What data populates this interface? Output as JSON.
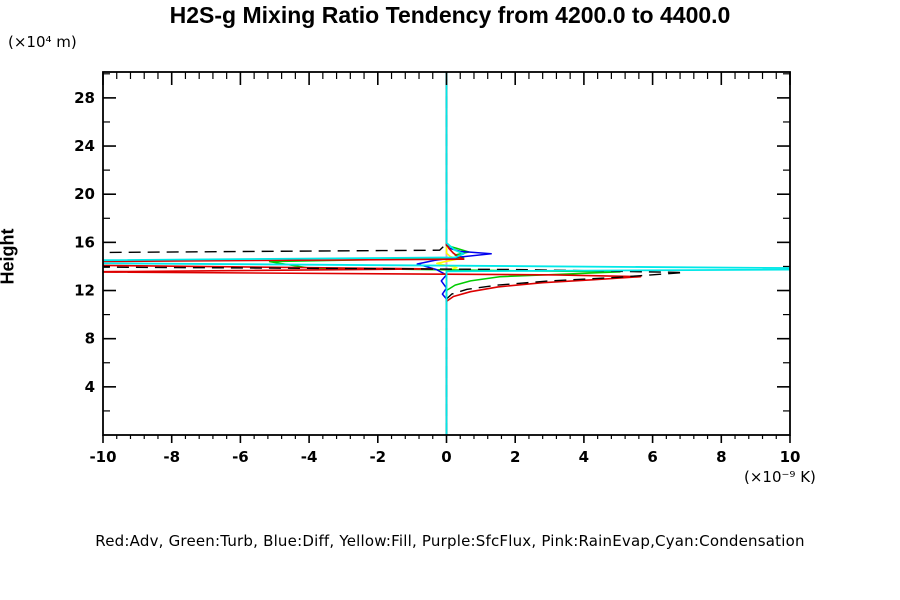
{
  "title": "H2S-g Mixing Ratio Tendency from 4200.0 to 4400.0",
  "legend": "Red:Adv, Green:Turb, Blue:Diff, Yellow:Fill, Purple:SfcFlux, Pink:RainEvap,Cyan:Condensation",
  "y_axis": {
    "unit_label": "(×10⁴ m)",
    "axis_label": "Height",
    "range": [
      0,
      30.15
    ],
    "major_ticks": [
      4,
      8,
      12,
      16,
      20,
      24,
      28
    ],
    "tick_labels": [
      "4",
      "8",
      "12",
      "16",
      "20",
      "24",
      "28"
    ],
    "minor_step": 2
  },
  "x_axis": {
    "unit_label": "(×10⁻⁹ K)",
    "range": [
      -10,
      10
    ],
    "major_ticks": [
      -10,
      -8,
      -6,
      -4,
      -2,
      0,
      2,
      4,
      6,
      8,
      10
    ],
    "tick_labels": [
      "-10",
      "-8",
      "-6",
      "-4",
      "-2",
      "0",
      "2",
      "4",
      "6",
      "8",
      "10"
    ],
    "minor_step": 0.4
  },
  "chart_data": {
    "type": "line",
    "title": "H2S-g Mixing Ratio Tendency from 4200.0 to 4400.0",
    "xlabel": "(×10⁻⁹ K)",
    "ylabel": "Height (×10⁴ m)",
    "x_range": [
      -10,
      10
    ],
    "y_range": [
      0,
      30.15
    ],
    "grid": false,
    "note": "Profiles plotted as x=tendency value vs y=height; values beyond ±10 are clipped at the frame. Points are [tendency, height].",
    "series": [
      {
        "name": "SfcFlux",
        "color": "#9944bb",
        "dash": null,
        "width": 1.4,
        "points": [
          [
            0,
            0
          ],
          [
            0,
            30.15
          ]
        ]
      },
      {
        "name": "RainEvap",
        "color": "#dd99dd",
        "dash": null,
        "width": 1.6,
        "points": [
          [
            0,
            0
          ],
          [
            0,
            30.15
          ]
        ]
      },
      {
        "name": "Fill",
        "color": "#ffff00",
        "dash": null,
        "width": 1.6,
        "points": [
          [
            0,
            0
          ],
          [
            0,
            13.6
          ],
          [
            0.3,
            13.9
          ],
          [
            -0.28,
            14.25
          ],
          [
            0.3,
            14.6
          ],
          [
            0.1,
            14.85
          ],
          [
            0,
            15.1
          ],
          [
            0,
            30.15
          ]
        ]
      },
      {
        "name": "Turb",
        "color": "#00cc00",
        "dash": null,
        "width": 1.5,
        "points": [
          [
            0,
            0
          ],
          [
            0,
            12.0
          ],
          [
            0.25,
            12.45
          ],
          [
            0.7,
            12.8
          ],
          [
            1.55,
            13.15
          ],
          [
            5.05,
            13.55
          ],
          [
            -3.97,
            13.85
          ],
          [
            -5.15,
            14.4
          ],
          [
            0.5,
            14.7
          ],
          [
            0.25,
            14.95
          ],
          [
            0.65,
            15.2
          ],
          [
            0.3,
            15.5
          ],
          [
            0,
            15.75
          ],
          [
            0,
            30.15
          ]
        ]
      },
      {
        "name": "Diff",
        "color": "#0000ee",
        "dash": null,
        "width": 1.5,
        "points": [
          [
            0,
            0
          ],
          [
            0,
            11.3
          ],
          [
            -0.12,
            11.7
          ],
          [
            0,
            12.2
          ],
          [
            -0.15,
            12.8
          ],
          [
            0,
            13.3
          ],
          [
            -0.3,
            13.75
          ],
          [
            -0.85,
            14.2
          ],
          [
            -0.35,
            14.5
          ],
          [
            0.3,
            14.75
          ],
          [
            1.3,
            15.05
          ],
          [
            0.4,
            15.25
          ],
          [
            0.1,
            15.5
          ],
          [
            0,
            15.75
          ],
          [
            0,
            30.15
          ]
        ]
      },
      {
        "name": "Adv",
        "color": "#dd0000",
        "dash": null,
        "width": 1.6,
        "points": [
          [
            0,
            0
          ],
          [
            0,
            11.1
          ],
          [
            0.2,
            11.5
          ],
          [
            0.7,
            11.9
          ],
          [
            1.5,
            12.3
          ],
          [
            2.8,
            12.65
          ],
          [
            4.3,
            12.9
          ],
          [
            5.65,
            13.15
          ],
          [
            3.2,
            13.3
          ],
          [
            -10.7,
            13.55
          ],
          [
            -0.4,
            13.8
          ],
          [
            -10.7,
            14.1
          ],
          [
            -10.7,
            14.4
          ],
          [
            0.5,
            14.6
          ],
          [
            0.35,
            14.8
          ],
          [
            0.2,
            15.1
          ],
          [
            0.07,
            15.5
          ],
          [
            0,
            15.85
          ],
          [
            0,
            30.15
          ]
        ]
      },
      {
        "name": "Total",
        "color": "#000000",
        "dash": "12 7",
        "width": 1.4,
        "points": [
          [
            0,
            0
          ],
          [
            0,
            11.3
          ],
          [
            0.15,
            11.7
          ],
          [
            0.6,
            12.1
          ],
          [
            1.5,
            12.45
          ],
          [
            3.0,
            12.8
          ],
          [
            5.0,
            13.1
          ],
          [
            6.9,
            13.5
          ],
          [
            4.0,
            13.65
          ],
          [
            2.0,
            13.75
          ],
          [
            -10.7,
            13.95
          ],
          [
            -10.7,
            15.15
          ],
          [
            -0.2,
            15.35
          ],
          [
            0,
            15.9
          ],
          [
            0,
            30.15
          ]
        ]
      },
      {
        "name": "Condensation",
        "color": "#00e8e8",
        "dash": null,
        "width": 1.8,
        "points": [
          [
            0,
            0
          ],
          [
            0,
            13.6
          ],
          [
            10.7,
            13.75
          ],
          [
            10.7,
            13.85
          ],
          [
            -10.7,
            14.28
          ],
          [
            -10.7,
            14.5
          ],
          [
            0.25,
            14.75
          ],
          [
            0.5,
            15.05
          ],
          [
            0.25,
            15.35
          ],
          [
            0,
            15.95
          ],
          [
            0,
            30.15
          ]
        ]
      }
    ]
  }
}
